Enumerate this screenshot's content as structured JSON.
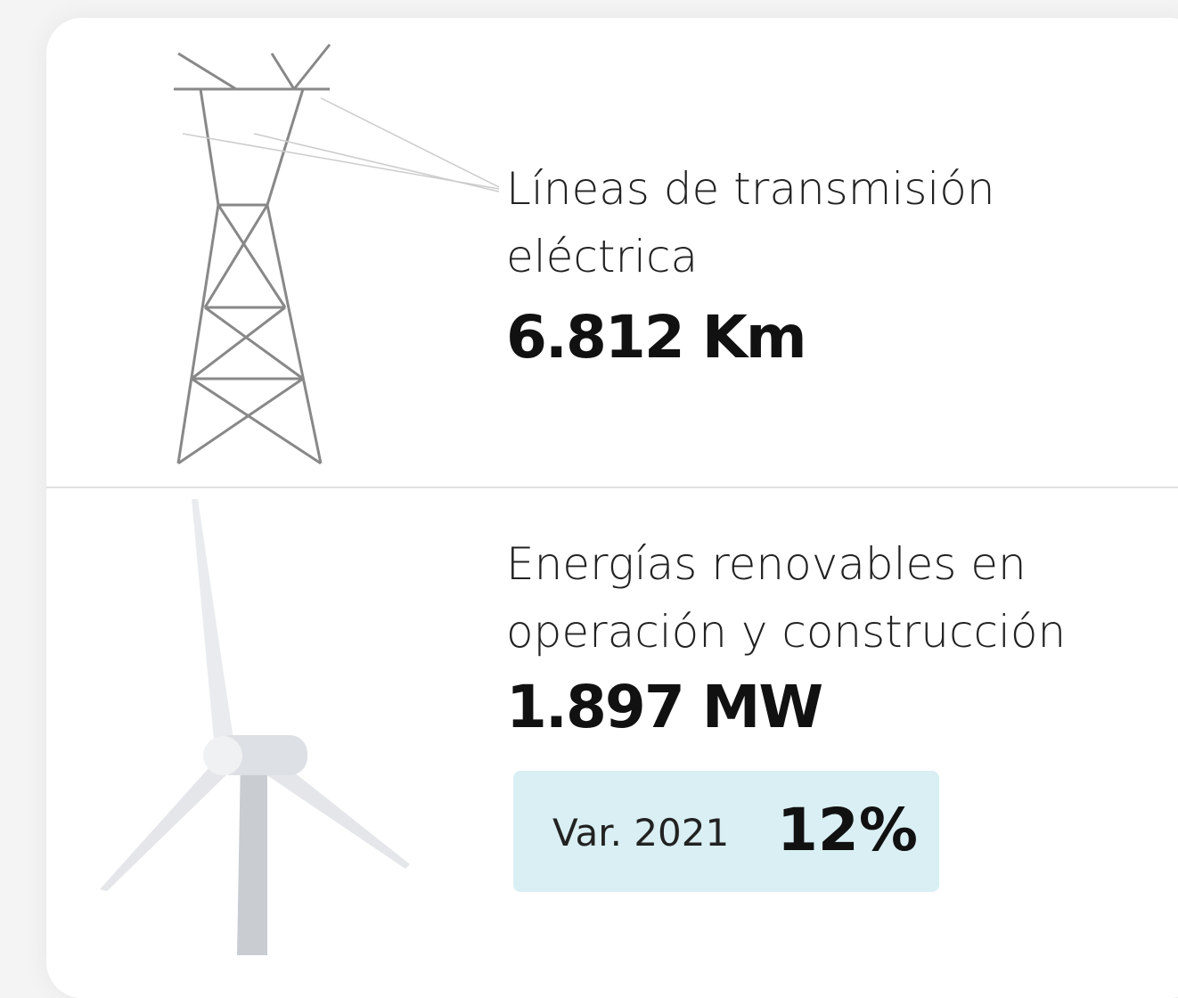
{
  "items": [
    {
      "label_lines": [
        "Líneas de transmisión",
        "eléctrica"
      ],
      "value": "6.812 Km"
    },
    {
      "label_lines": [
        "Energías renovables en",
        "operación y construcción"
      ],
      "value": "1.897 MW",
      "badge": {
        "label": "Var. 2021",
        "value": "12%"
      }
    }
  ]
}
